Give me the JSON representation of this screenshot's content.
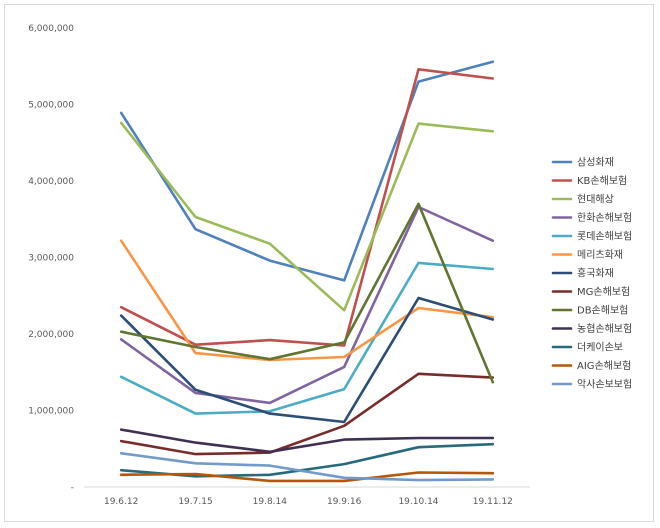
{
  "chart_data": {
    "type": "line",
    "title": "",
    "xlabel": "",
    "ylabel": "",
    "ylim": [
      0,
      6000000
    ],
    "yticks": [
      0,
      1000000,
      2000000,
      3000000,
      4000000,
      5000000,
      6000000
    ],
    "ytick_labels": [
      "-",
      "1,000,000",
      "2,000,000",
      "3,000,000",
      "4,000,000",
      "5,000,000",
      "6,000,000"
    ],
    "grid": false,
    "legend": "right",
    "categories": [
      "19.6.12",
      "19.7.15",
      "19.8.14",
      "19.9.16",
      "19.10.14",
      "19.11.12"
    ],
    "series": [
      {
        "name": "삼성화재",
        "color": "#4F81BD",
        "values": [
          4890000,
          3370000,
          2960000,
          2700000,
          5300000,
          5560000
        ]
      },
      {
        "name": "KB손해보험",
        "color": "#C0504D",
        "values": [
          2350000,
          1860000,
          1920000,
          1850000,
          5460000,
          5340000
        ]
      },
      {
        "name": "현대해상",
        "color": "#9BBB59",
        "values": [
          4760000,
          3530000,
          3180000,
          2310000,
          4750000,
          4650000
        ]
      },
      {
        "name": "한화손해보험",
        "color": "#8064A2",
        "values": [
          1930000,
          1230000,
          1100000,
          1570000,
          3660000,
          3220000
        ]
      },
      {
        "name": "롯데손해보험",
        "color": "#4BACC6",
        "values": [
          1440000,
          960000,
          990000,
          1280000,
          2930000,
          2850000
        ]
      },
      {
        "name": "메리츠화재",
        "color": "#F79646",
        "values": [
          3220000,
          1750000,
          1660000,
          1700000,
          2340000,
          2220000
        ]
      },
      {
        "name": "흥국화재",
        "color": "#2C4D75",
        "values": [
          2240000,
          1270000,
          960000,
          850000,
          2470000,
          2190000
        ]
      },
      {
        "name": "MG손해보험",
        "color": "#772C2A",
        "values": [
          600000,
          430000,
          450000,
          800000,
          1480000,
          1430000
        ]
      },
      {
        "name": "DB손해보험",
        "color": "#5F7530",
        "values": [
          2030000,
          1830000,
          1670000,
          1890000,
          3700000,
          1370000
        ]
      },
      {
        "name": "농협손해보험",
        "color": "#403152",
        "values": [
          750000,
          580000,
          460000,
          620000,
          640000,
          640000
        ]
      },
      {
        "name": "더케이손보",
        "color": "#276A7C",
        "values": [
          220000,
          140000,
          160000,
          300000,
          520000,
          560000
        ]
      },
      {
        "name": "AIG손해보험",
        "color": "#B65708",
        "values": [
          160000,
          170000,
          80000,
          80000,
          190000,
          180000
        ]
      },
      {
        "name": "악사손보보험",
        "color": "#729ACA",
        "values": [
          440000,
          310000,
          280000,
          120000,
          90000,
          100000
        ]
      }
    ]
  }
}
